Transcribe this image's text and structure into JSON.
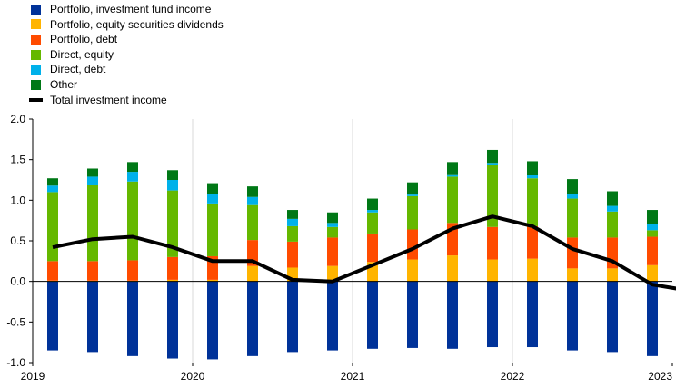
{
  "chart_data": {
    "type": "bar",
    "stacked": true,
    "legend_position": "top-left",
    "grid": {
      "vertical": true,
      "horizontal": false
    },
    "ylim": [
      -1.0,
      2.0
    ],
    "y_ticks": [
      "2.0",
      "1.5",
      "1.0",
      "0.5",
      "0.0",
      "-0.5",
      "-1.0"
    ],
    "y_tick_values": [
      2.0,
      1.5,
      1.0,
      0.5,
      0.0,
      -0.5,
      -1.0
    ],
    "x_tick_labels": [
      "2019",
      "2020",
      "2021",
      "2022",
      "2023"
    ],
    "x_tick_positions": [
      0,
      4,
      8,
      12,
      16
    ],
    "x": [
      0.5,
      1.5,
      2.5,
      3.5,
      4.5,
      5.5,
      6.5,
      7.5,
      8.5,
      9.5,
      10.5,
      11.5,
      12.5,
      13.5,
      14.5,
      15.5,
      16.5
    ],
    "series": [
      {
        "name": "Portfolio, investment fund income",
        "color": "#003299",
        "values": [
          -0.85,
          -0.87,
          -0.92,
          -0.95,
          -0.96,
          -0.92,
          -0.87,
          -0.85,
          -0.83,
          -0.82,
          -0.83,
          -0.81,
          -0.81,
          -0.85,
          -0.87,
          -0.92,
          -0.98
        ]
      },
      {
        "name": "Portfolio, equity securities dividends",
        "color": "#FFB400",
        "values": [
          0.01,
          0.01,
          0.01,
          0.02,
          0.02,
          0.19,
          0.17,
          0.19,
          0.24,
          0.27,
          0.32,
          0.27,
          0.28,
          0.16,
          0.16,
          0.2,
          0.17
        ]
      },
      {
        "name": "Portfolio, debt",
        "color": "#FF4B00",
        "values": [
          0.24,
          0.24,
          0.25,
          0.28,
          0.29,
          0.32,
          0.32,
          0.35,
          0.35,
          0.37,
          0.4,
          0.4,
          0.4,
          0.38,
          0.38,
          0.35,
          0.36
        ]
      },
      {
        "name": "Direct, equity",
        "color": "#65B800",
        "values": [
          0.85,
          0.94,
          0.97,
          0.82,
          0.65,
          0.43,
          0.19,
          0.13,
          0.26,
          0.41,
          0.57,
          0.77,
          0.59,
          0.48,
          0.32,
          0.08,
          0.09
        ]
      },
      {
        "name": "Direct, debt",
        "color": "#00B1EA",
        "values": [
          0.08,
          0.1,
          0.12,
          0.13,
          0.12,
          0.1,
          0.09,
          0.05,
          0.03,
          0.02,
          0.03,
          0.02,
          0.04,
          0.06,
          0.07,
          0.08,
          0.09
        ]
      },
      {
        "name": "Other",
        "color": "#007816",
        "values": [
          0.09,
          0.1,
          0.12,
          0.12,
          0.13,
          0.13,
          0.11,
          0.13,
          0.14,
          0.15,
          0.15,
          0.16,
          0.17,
          0.18,
          0.18,
          0.17,
          0.14
        ]
      }
    ],
    "line": {
      "name": "Total investment income",
      "color": "#000000",
      "values": [
        0.42,
        0.52,
        0.55,
        0.42,
        0.25,
        0.25,
        0.02,
        0.0,
        0.2,
        0.4,
        0.65,
        0.8,
        0.68,
        0.4,
        0.25,
        -0.04,
        -0.12
      ]
    }
  }
}
